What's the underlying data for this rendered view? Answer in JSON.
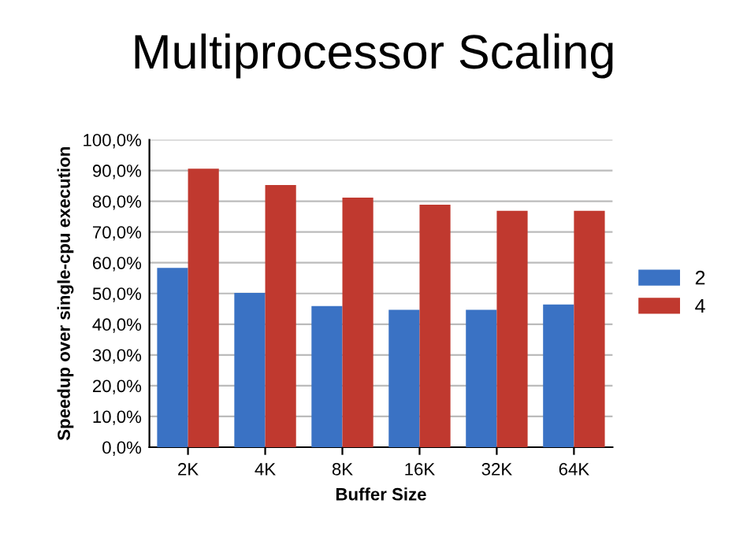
{
  "chart_data": {
    "type": "bar",
    "title": "Multiprocessor Scaling",
    "xlabel": "Buffer Size",
    "ylabel": "Speedup over single-cpu execution",
    "categories": [
      "2K",
      "4K",
      "8K",
      "16K",
      "32K",
      "64K"
    ],
    "series": [
      {
        "name": "2",
        "color": "#3a72c4",
        "values": [
          58.3,
          50.2,
          45.9,
          44.7,
          44.7,
          46.4
        ]
      },
      {
        "name": "4",
        "color": "#c0392f",
        "values": [
          90.6,
          85.3,
          81.2,
          78.9,
          76.9,
          76.9
        ]
      }
    ],
    "ylim": [
      0,
      100
    ],
    "yticks": [
      {
        "value": 0,
        "label": "0,0%"
      },
      {
        "value": 10,
        "label": "10,0%"
      },
      {
        "value": 20,
        "label": "20,0%"
      },
      {
        "value": 30,
        "label": "30,0%"
      },
      {
        "value": 40,
        "label": "40,0%"
      },
      {
        "value": 50,
        "label": "50,0%"
      },
      {
        "value": 60,
        "label": "60,0%"
      },
      {
        "value": 70,
        "label": "70,0%"
      },
      {
        "value": 80,
        "label": "80,0%"
      },
      {
        "value": 90,
        "label": "90,0%"
      },
      {
        "value": 100,
        "label": "100,0%"
      }
    ],
    "grid": "y",
    "legend": "right"
  }
}
